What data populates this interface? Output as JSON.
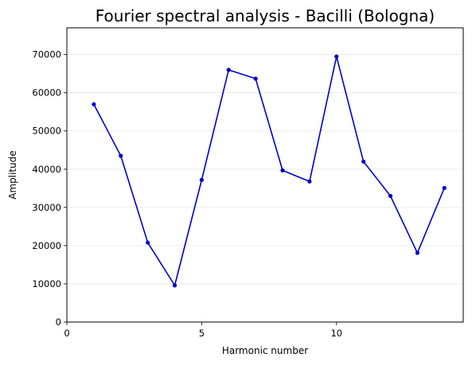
{
  "chart_data": {
    "type": "line",
    "title": "Fourier spectral analysis - Bacilli (Bologna)",
    "xlabel": "Harmonic number",
    "ylabel": "Amplitude",
    "xlim": [
      0,
      14.7
    ],
    "ylim": [
      0,
      77000
    ],
    "xticks": [
      0,
      5,
      10
    ],
    "yticks": [
      0,
      10000,
      20000,
      30000,
      40000,
      50000,
      60000,
      70000
    ],
    "grid": "horizontal",
    "line_color": "#0000c8",
    "x": [
      1,
      2,
      3,
      4,
      5,
      6,
      7,
      8,
      9,
      10,
      11,
      12,
      13,
      14
    ],
    "series": [
      {
        "values": [
          57000,
          43500,
          20800,
          9600,
          37200,
          66000,
          63700,
          39700,
          36800,
          69500,
          42000,
          33000,
          18100,
          35100
        ]
      }
    ]
  }
}
